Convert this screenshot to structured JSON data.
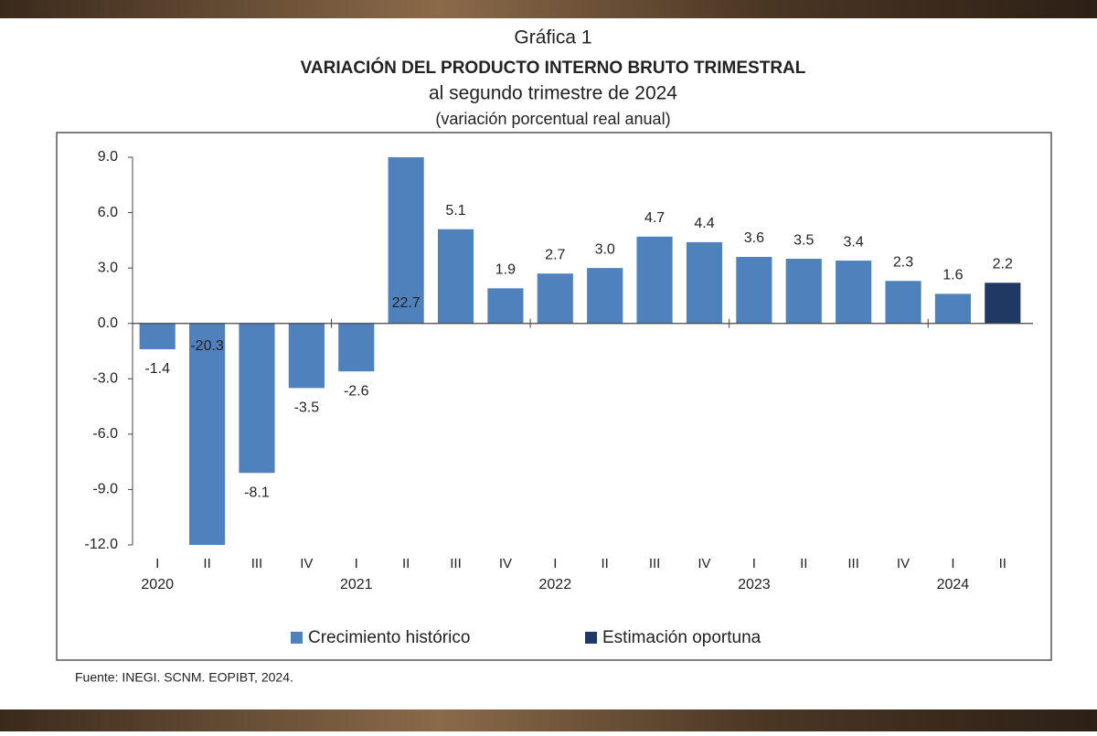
{
  "chart_data": {
    "type": "bar",
    "heading": "Gráfica 1",
    "title": "VARIACIÓN DEL PRODUCTO INTERNO BRUTO TRIMESTRAL",
    "subtitle": "al segundo trimestre de 2024",
    "unit_note": "(variación porcentual real anual)",
    "source": "Fuente: INEGI. SCNM. EOPIBT, 2024.",
    "categories": [
      "I",
      "II",
      "III",
      "IV",
      "I",
      "II",
      "III",
      "IV",
      "I",
      "II",
      "III",
      "IV",
      "I",
      "II",
      "III",
      "IV",
      "I",
      "II"
    ],
    "year_labels": [
      "2020",
      null,
      null,
      null,
      "2021",
      null,
      null,
      null,
      "2022",
      null,
      null,
      null,
      "2023",
      null,
      null,
      null,
      "2024",
      null
    ],
    "series": [
      {
        "name": "Crecimiento histórico",
        "color": "#4f81bd",
        "values": [
          -1.4,
          -20.3,
          -8.1,
          -3.5,
          -2.6,
          22.7,
          5.1,
          1.9,
          2.7,
          3,
          4.7,
          4.4,
          3.6,
          3.5,
          3.4,
          2.3,
          1.6,
          null
        ],
        "value_labels": [
          "-1.4",
          "-20.3",
          "-8.1",
          "-3.5",
          "-2.6",
          "22.7",
          "5.1",
          "1.9",
          "2.7",
          "3.0",
          "4.7",
          "4.4",
          "3.6",
          "3.5",
          "3.4",
          "2.3",
          "1.6",
          null
        ]
      },
      {
        "name": "Estimación oportuna",
        "color": "#1f3864",
        "values": [
          null,
          null,
          null,
          null,
          null,
          null,
          null,
          null,
          null,
          null,
          null,
          null,
          null,
          null,
          null,
          null,
          null,
          2.2
        ],
        "value_labels": [
          null,
          null,
          null,
          null,
          null,
          null,
          null,
          null,
          null,
          null,
          null,
          null,
          null,
          null,
          null,
          null,
          null,
          "2.2"
        ]
      }
    ],
    "ylim": [
      -12,
      9
    ],
    "yticks": [
      {
        "value": 9,
        "label": "9.0"
      },
      {
        "value": 6,
        "label": "6.0"
      },
      {
        "value": 3,
        "label": "3.0"
      },
      {
        "value": 0,
        "label": "0.0"
      },
      {
        "value": -3,
        "label": "-3.0"
      },
      {
        "value": -6,
        "label": "-6.0"
      },
      {
        "value": -9,
        "label": "-9.0"
      },
      {
        "value": -12,
        "label": "-12.0"
      }
    ],
    "legend": "bottom"
  }
}
